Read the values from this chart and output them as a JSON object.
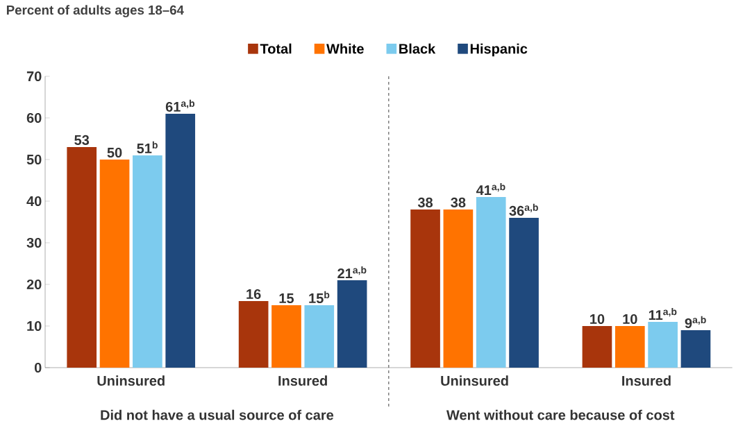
{
  "chart_data": {
    "type": "bar",
    "ylabel": "Percent of adults ages 18–64",
    "categories": [
      "Uninsured",
      "Insured",
      "Uninsured",
      "Insured"
    ],
    "series": [
      {
        "name": "Total",
        "color": "#a8350c",
        "values": [
          53,
          16,
          38,
          10
        ],
        "value_labels": [
          "53",
          "16",
          "38",
          "10"
        ]
      },
      {
        "name": "White",
        "color": "#ff7300",
        "values": [
          50,
          15,
          38,
          10
        ],
        "value_labels": [
          "50",
          "15",
          "38",
          "10"
        ]
      },
      {
        "name": "Black",
        "color": "#7ccbee",
        "values": [
          51,
          15,
          41,
          11
        ],
        "value_labels": [
          "51$^{b}$",
          "15$^{b}$",
          "41$^{a,b}$",
          "11$^{a,b}$"
        ]
      },
      {
        "name": "Hispanic",
        "color": "#1f497d",
        "values": [
          61,
          21,
          36,
          9
        ],
        "value_labels": [
          "61$^{a,b}$",
          "21$^{a,b}$",
          "36$^{a,b}$",
          "9$^{a,b}$"
        ]
      }
    ],
    "ylim": [
      0,
      70
    ],
    "yticks": [
      0,
      10,
      20,
      30,
      40,
      50,
      60,
      70
    ],
    "grid": false,
    "legend": "top",
    "annotations": [
      "Did not have a usual source of care",
      "Went without care because of cost"
    ]
  }
}
